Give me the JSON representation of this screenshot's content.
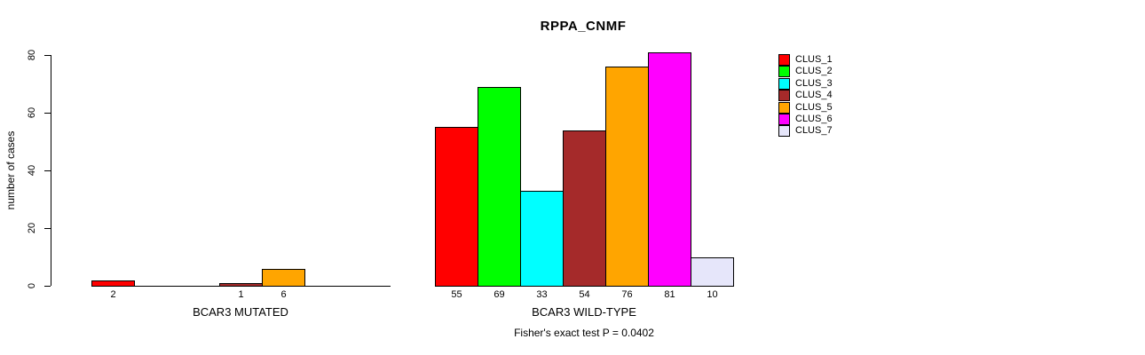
{
  "chart_data": {
    "type": "bar",
    "title": "RPPA_CNMF",
    "ylabel": "number of cases",
    "xlabel": "",
    "ylim": [
      0,
      80
    ],
    "yticks": [
      0,
      20,
      40,
      60,
      80
    ],
    "grid": false,
    "legend_position": "right",
    "categories": [
      "BCAR3 MUTATED",
      "BCAR3 WILD-TYPE"
    ],
    "series": [
      {
        "name": "CLUS_1",
        "color": "#ff0000",
        "values": [
          2,
          55
        ]
      },
      {
        "name": "CLUS_2",
        "color": "#00ff00",
        "values": [
          0,
          69
        ]
      },
      {
        "name": "CLUS_3",
        "color": "#00ffff",
        "values": [
          0,
          33
        ]
      },
      {
        "name": "CLUS_4",
        "color": "#a52a2a",
        "values": [
          1,
          54
        ]
      },
      {
        "name": "CLUS_5",
        "color": "#ffa500",
        "values": [
          6,
          76
        ]
      },
      {
        "name": "CLUS_6",
        "color": "#ff00ff",
        "values": [
          0,
          81
        ]
      },
      {
        "name": "CLUS_7",
        "color": "#e6e6fa",
        "values": [
          0,
          10
        ]
      }
    ],
    "bar_value_labels": "shown below each nonzero bar",
    "annotation": "Fisher's exact test P = 0.0402"
  }
}
